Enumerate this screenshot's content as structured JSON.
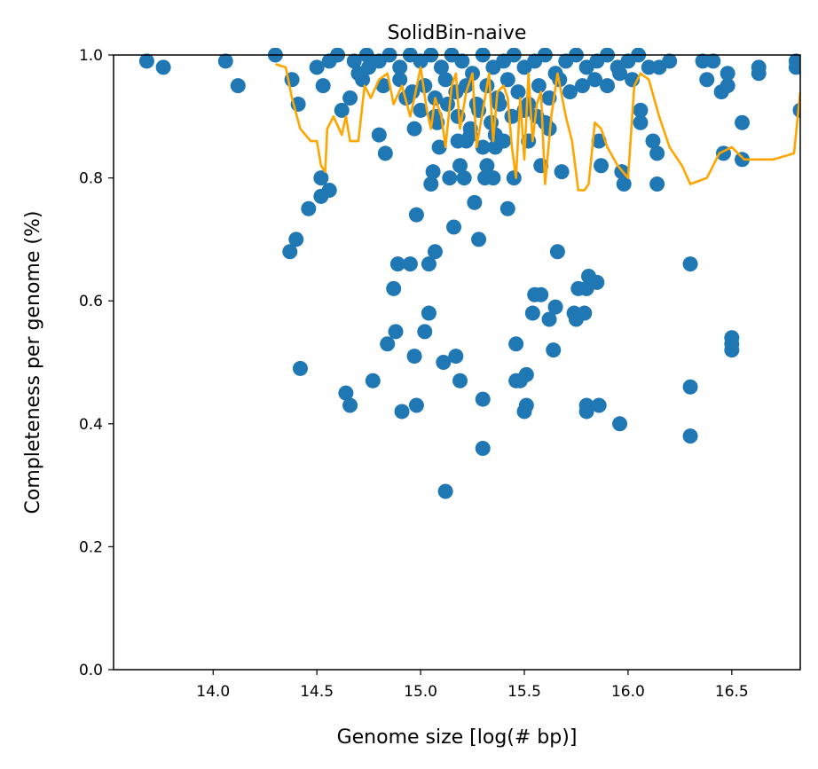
{
  "chart_data": {
    "type": "scatter",
    "title": "SolidBin-naive",
    "xlabel": "Genome size [log(# bp)]",
    "ylabel": "Completeness per genome (%)",
    "xlim": [
      13.52,
      16.83
    ],
    "ylim": [
      0.0,
      1.0
    ],
    "x_ticks": [
      14.0,
      14.5,
      15.0,
      15.5,
      16.0,
      16.5
    ],
    "x_tick_labels": [
      "14.0",
      "14.5",
      "15.0",
      "15.5",
      "16.0",
      "16.5"
    ],
    "y_ticks": [
      0.0,
      0.2,
      0.4,
      0.6,
      0.8,
      1.0
    ],
    "y_tick_labels": [
      "0.0",
      "0.2",
      "0.4",
      "0.6",
      "0.8",
      "1.0"
    ],
    "grid": false,
    "legend": false,
    "series": [
      {
        "kind": "scatter",
        "color": "#1f77b4",
        "points": [
          [
            13.68,
            0.99
          ],
          [
            13.76,
            0.98
          ],
          [
            14.06,
            0.99
          ],
          [
            14.12,
            0.95
          ],
          [
            14.3,
            1.0
          ],
          [
            14.38,
            0.96
          ],
          [
            14.41,
            0.92
          ],
          [
            14.37,
            0.68
          ],
          [
            14.4,
            0.7
          ],
          [
            14.42,
            0.49
          ],
          [
            14.46,
            0.75
          ],
          [
            14.52,
            0.8
          ],
          [
            14.52,
            0.77
          ],
          [
            14.56,
            0.78
          ],
          [
            14.53,
            0.95
          ],
          [
            14.5,
            0.98
          ],
          [
            14.56,
            0.99
          ],
          [
            14.62,
            0.91
          ],
          [
            14.64,
            0.45
          ],
          [
            14.66,
            0.43
          ],
          [
            14.66,
            0.93
          ],
          [
            14.7,
            0.97
          ],
          [
            14.75,
            0.98
          ],
          [
            14.77,
            0.47
          ],
          [
            14.8,
            0.87
          ],
          [
            14.83,
            0.84
          ],
          [
            14.84,
            0.53
          ],
          [
            14.87,
            0.62
          ],
          [
            14.88,
            0.55
          ],
          [
            14.89,
            0.66
          ],
          [
            14.91,
            0.42
          ],
          [
            14.93,
            0.93
          ],
          [
            14.95,
            0.66
          ],
          [
            14.97,
            0.51
          ],
          [
            14.98,
            0.43
          ],
          [
            14.97,
            0.88
          ],
          [
            14.98,
            0.74
          ],
          [
            15.02,
            0.55
          ],
          [
            15.04,
            0.66
          ],
          [
            15.04,
            0.58
          ],
          [
            15.05,
            0.79
          ],
          [
            15.06,
            0.81
          ],
          [
            15.07,
            0.68
          ],
          [
            15.07,
            0.9
          ],
          [
            15.09,
            0.85
          ],
          [
            15.11,
            0.5
          ],
          [
            15.12,
            0.29
          ],
          [
            15.14,
            0.8
          ],
          [
            15.16,
            0.72
          ],
          [
            15.17,
            0.51
          ],
          [
            15.19,
            0.47
          ],
          [
            15.19,
            0.82
          ],
          [
            15.21,
            0.8
          ],
          [
            15.22,
            0.86
          ],
          [
            15.26,
            0.76
          ],
          [
            15.28,
            0.7
          ],
          [
            15.3,
            0.44
          ],
          [
            15.3,
            0.36
          ],
          [
            15.31,
            0.8
          ],
          [
            15.32,
            0.82
          ],
          [
            15.35,
            0.8
          ],
          [
            15.36,
            0.85
          ],
          [
            15.42,
            0.75
          ],
          [
            15.45,
            0.8
          ],
          [
            15.46,
            0.47
          ],
          [
            15.46,
            0.53
          ],
          [
            15.48,
            0.47
          ],
          [
            15.5,
            0.42
          ],
          [
            15.51,
            0.43
          ],
          [
            15.51,
            0.48
          ],
          [
            15.52,
            0.86
          ],
          [
            15.54,
            0.58
          ],
          [
            15.55,
            0.61
          ],
          [
            15.58,
            0.82
          ],
          [
            15.58,
            0.61
          ],
          [
            15.6,
            0.89
          ],
          [
            15.62,
            0.57
          ],
          [
            15.64,
            0.52
          ],
          [
            15.65,
            0.59
          ],
          [
            15.66,
            0.68
          ],
          [
            15.68,
            0.81
          ],
          [
            15.74,
            0.58
          ],
          [
            15.75,
            0.57
          ],
          [
            15.76,
            0.62
          ],
          [
            15.79,
            0.58
          ],
          [
            15.8,
            0.43
          ],
          [
            15.8,
            0.42
          ],
          [
            15.8,
            0.62
          ],
          [
            15.81,
            0.64
          ],
          [
            15.85,
            0.63
          ],
          [
            15.86,
            0.86
          ],
          [
            15.86,
            0.43
          ],
          [
            15.87,
            0.82
          ],
          [
            15.96,
            0.4
          ],
          [
            15.97,
            0.81
          ],
          [
            15.98,
            0.79
          ],
          [
            16.06,
            0.89
          ],
          [
            16.06,
            0.91
          ],
          [
            16.12,
            0.86
          ],
          [
            16.14,
            0.84
          ],
          [
            16.14,
            0.79
          ],
          [
            16.15,
            0.98
          ],
          [
            16.3,
            0.66
          ],
          [
            16.3,
            0.46
          ],
          [
            16.3,
            0.38
          ],
          [
            16.36,
            0.99
          ],
          [
            16.38,
            0.96
          ],
          [
            16.41,
            0.99
          ],
          [
            16.45,
            0.94
          ],
          [
            16.46,
            0.84
          ],
          [
            16.48,
            0.97
          ],
          [
            16.48,
            0.95
          ],
          [
            16.5,
            0.54
          ],
          [
            16.5,
            0.53
          ],
          [
            16.5,
            0.52
          ],
          [
            16.55,
            0.89
          ],
          [
            16.55,
            0.83
          ],
          [
            16.63,
            0.97
          ],
          [
            16.63,
            0.98
          ],
          [
            16.81,
            0.99
          ],
          [
            16.81,
            0.98
          ],
          [
            16.83,
            0.91
          ],
          [
            14.6,
            1.0
          ],
          [
            14.68,
            0.99
          ],
          [
            14.74,
            1.0
          ],
          [
            14.8,
            0.99
          ],
          [
            14.85,
            1.0
          ],
          [
            14.9,
            0.98
          ],
          [
            14.95,
            1.0
          ],
          [
            15.0,
            0.99
          ],
          [
            15.05,
            1.0
          ],
          [
            15.1,
            0.98
          ],
          [
            15.15,
            1.0
          ],
          [
            15.2,
            0.99
          ],
          [
            15.25,
            0.97
          ],
          [
            15.3,
            1.0
          ],
          [
            15.35,
            0.98
          ],
          [
            15.4,
            0.99
          ],
          [
            15.45,
            1.0
          ],
          [
            15.5,
            0.98
          ],
          [
            15.55,
            0.99
          ],
          [
            15.6,
            1.0
          ],
          [
            15.65,
            0.97
          ],
          [
            15.7,
            0.99
          ],
          [
            15.75,
            1.0
          ],
          [
            15.8,
            0.98
          ],
          [
            15.85,
            0.99
          ],
          [
            15.9,
            1.0
          ],
          [
            15.95,
            0.98
          ],
          [
            16.0,
            0.99
          ],
          [
            16.05,
            1.0
          ],
          [
            16.1,
            0.98
          ],
          [
            16.2,
            0.99
          ],
          [
            14.72,
            0.96
          ],
          [
            14.82,
            0.95
          ],
          [
            14.9,
            0.96
          ],
          [
            14.96,
            0.94
          ],
          [
            15.02,
            0.95
          ],
          [
            15.07,
            0.93
          ],
          [
            15.12,
            0.96
          ],
          [
            15.17,
            0.94
          ],
          [
            15.22,
            0.95
          ],
          [
            15.27,
            0.92
          ],
          [
            15.32,
            0.95
          ],
          [
            15.37,
            0.93
          ],
          [
            15.42,
            0.96
          ],
          [
            15.47,
            0.94
          ],
          [
            15.52,
            0.92
          ],
          [
            15.57,
            0.95
          ],
          [
            15.62,
            0.93
          ],
          [
            15.67,
            0.96
          ],
          [
            15.72,
            0.94
          ],
          [
            15.78,
            0.95
          ],
          [
            15.84,
            0.96
          ],
          [
            15.9,
            0.95
          ],
          [
            15.96,
            0.97
          ],
          [
            16.02,
            0.96
          ],
          [
            15.0,
            0.91
          ],
          [
            15.08,
            0.89
          ],
          [
            15.13,
            0.92
          ],
          [
            15.18,
            0.9
          ],
          [
            15.24,
            0.88
          ],
          [
            15.28,
            0.91
          ],
          [
            15.34,
            0.89
          ],
          [
            15.38,
            0.92
          ],
          [
            15.44,
            0.9
          ],
          [
            15.5,
            0.91
          ],
          [
            15.56,
            0.9
          ],
          [
            15.62,
            0.88
          ],
          [
            15.18,
            0.86
          ],
          [
            15.24,
            0.87
          ],
          [
            15.3,
            0.85
          ],
          [
            15.36,
            0.87
          ],
          [
            15.4,
            0.86
          ]
        ]
      },
      {
        "kind": "line",
        "color": "#ffa500",
        "points": [
          [
            14.3,
            0.985
          ],
          [
            14.35,
            0.98
          ],
          [
            14.38,
            0.93
          ],
          [
            14.42,
            0.88
          ],
          [
            14.47,
            0.86
          ],
          [
            14.5,
            0.86
          ],
          [
            14.52,
            0.82
          ],
          [
            14.54,
            0.81
          ],
          [
            14.55,
            0.88
          ],
          [
            14.58,
            0.9
          ],
          [
            14.62,
            0.87
          ],
          [
            14.64,
            0.9
          ],
          [
            14.66,
            0.86
          ],
          [
            14.7,
            0.86
          ],
          [
            14.73,
            0.95
          ],
          [
            14.76,
            0.93
          ],
          [
            14.8,
            0.96
          ],
          [
            14.84,
            0.97
          ],
          [
            14.87,
            0.92
          ],
          [
            14.91,
            0.95
          ],
          [
            14.95,
            0.9
          ],
          [
            14.97,
            0.93
          ],
          [
            15.0,
            0.98
          ],
          [
            15.03,
            0.91
          ],
          [
            15.05,
            0.88
          ],
          [
            15.07,
            0.93
          ],
          [
            15.1,
            0.9
          ],
          [
            15.12,
            0.85
          ],
          [
            15.15,
            0.95
          ],
          [
            15.17,
            0.97
          ],
          [
            15.19,
            0.88
          ],
          [
            15.22,
            0.94
          ],
          [
            15.25,
            0.97
          ],
          [
            15.27,
            0.85
          ],
          [
            15.3,
            0.91
          ],
          [
            15.33,
            0.97
          ],
          [
            15.35,
            0.86
          ],
          [
            15.37,
            0.94
          ],
          [
            15.4,
            0.95
          ],
          [
            15.42,
            0.93
          ],
          [
            15.44,
            0.85
          ],
          [
            15.46,
            0.8
          ],
          [
            15.48,
            0.93
          ],
          [
            15.5,
            0.83
          ],
          [
            15.52,
            0.97
          ],
          [
            15.54,
            0.86
          ],
          [
            15.56,
            0.92
          ],
          [
            15.58,
            0.94
          ],
          [
            15.6,
            0.79
          ],
          [
            15.63,
            0.9
          ],
          [
            15.66,
            0.97
          ],
          [
            15.7,
            0.9
          ],
          [
            15.73,
            0.86
          ],
          [
            15.76,
            0.78
          ],
          [
            15.79,
            0.78
          ],
          [
            15.81,
            0.79
          ],
          [
            15.84,
            0.89
          ],
          [
            15.87,
            0.88
          ],
          [
            15.9,
            0.85
          ],
          [
            15.95,
            0.82
          ],
          [
            16.0,
            0.8
          ],
          [
            16.03,
            0.95
          ],
          [
            16.06,
            0.97
          ],
          [
            16.1,
            0.96
          ],
          [
            16.15,
            0.9
          ],
          [
            16.2,
            0.85
          ],
          [
            16.26,
            0.82
          ],
          [
            16.3,
            0.79
          ],
          [
            16.38,
            0.8
          ],
          [
            16.44,
            0.84
          ],
          [
            16.5,
            0.85
          ],
          [
            16.56,
            0.83
          ],
          [
            16.62,
            0.83
          ],
          [
            16.7,
            0.83
          ],
          [
            16.8,
            0.84
          ],
          [
            16.83,
            0.94
          ]
        ]
      }
    ]
  }
}
